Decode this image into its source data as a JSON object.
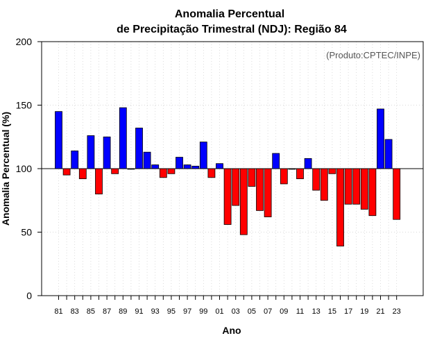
{
  "chart_data": {
    "type": "bar",
    "title": "Anomalia Percentual",
    "subtitle": "de Precipitação Trimestral (NDJ): Região 84",
    "xlabel": "Ano",
    "ylabel": "Anomalia Percentual (%)",
    "credit": "(Produto:CPTEC/INPE)",
    "ylim": [
      0,
      200
    ],
    "yticks": [
      0,
      50,
      100,
      150,
      200
    ],
    "baseline": 100,
    "grid": true,
    "colors": {
      "above": "#0000ff",
      "below": "#ff0000",
      "baseline": "#000000",
      "grid": "#cccccc"
    },
    "categories": [
      "81",
      "82",
      "83",
      "84",
      "85",
      "86",
      "87",
      "88",
      "89",
      "90",
      "91",
      "92",
      "93",
      "94",
      "95",
      "96",
      "97",
      "98",
      "99",
      "00",
      "01",
      "02",
      "03",
      "04",
      "05",
      "06",
      "07",
      "08",
      "09",
      "10",
      "11",
      "12",
      "13",
      "14",
      "15",
      "16",
      "17",
      "18",
      "19",
      "20",
      "21",
      "22",
      "23"
    ],
    "xtick_labels": [
      "81",
      "83",
      "85",
      "87",
      "89",
      "91",
      "93",
      "95",
      "97",
      "99",
      "01",
      "03",
      "05",
      "07",
      "09",
      "11",
      "13",
      "15",
      "17",
      "19",
      "21",
      "23"
    ],
    "values": [
      145,
      95,
      114,
      92,
      126,
      80,
      125,
      96,
      148,
      99.5,
      132,
      113,
      103,
      93,
      96,
      109,
      103,
      102,
      121,
      93,
      104,
      56,
      71,
      48,
      86,
      67,
      62,
      112,
      88,
      99.5,
      92,
      108,
      83,
      75,
      96,
      39,
      72,
      72,
      68,
      63,
      147,
      123,
      60
    ]
  }
}
